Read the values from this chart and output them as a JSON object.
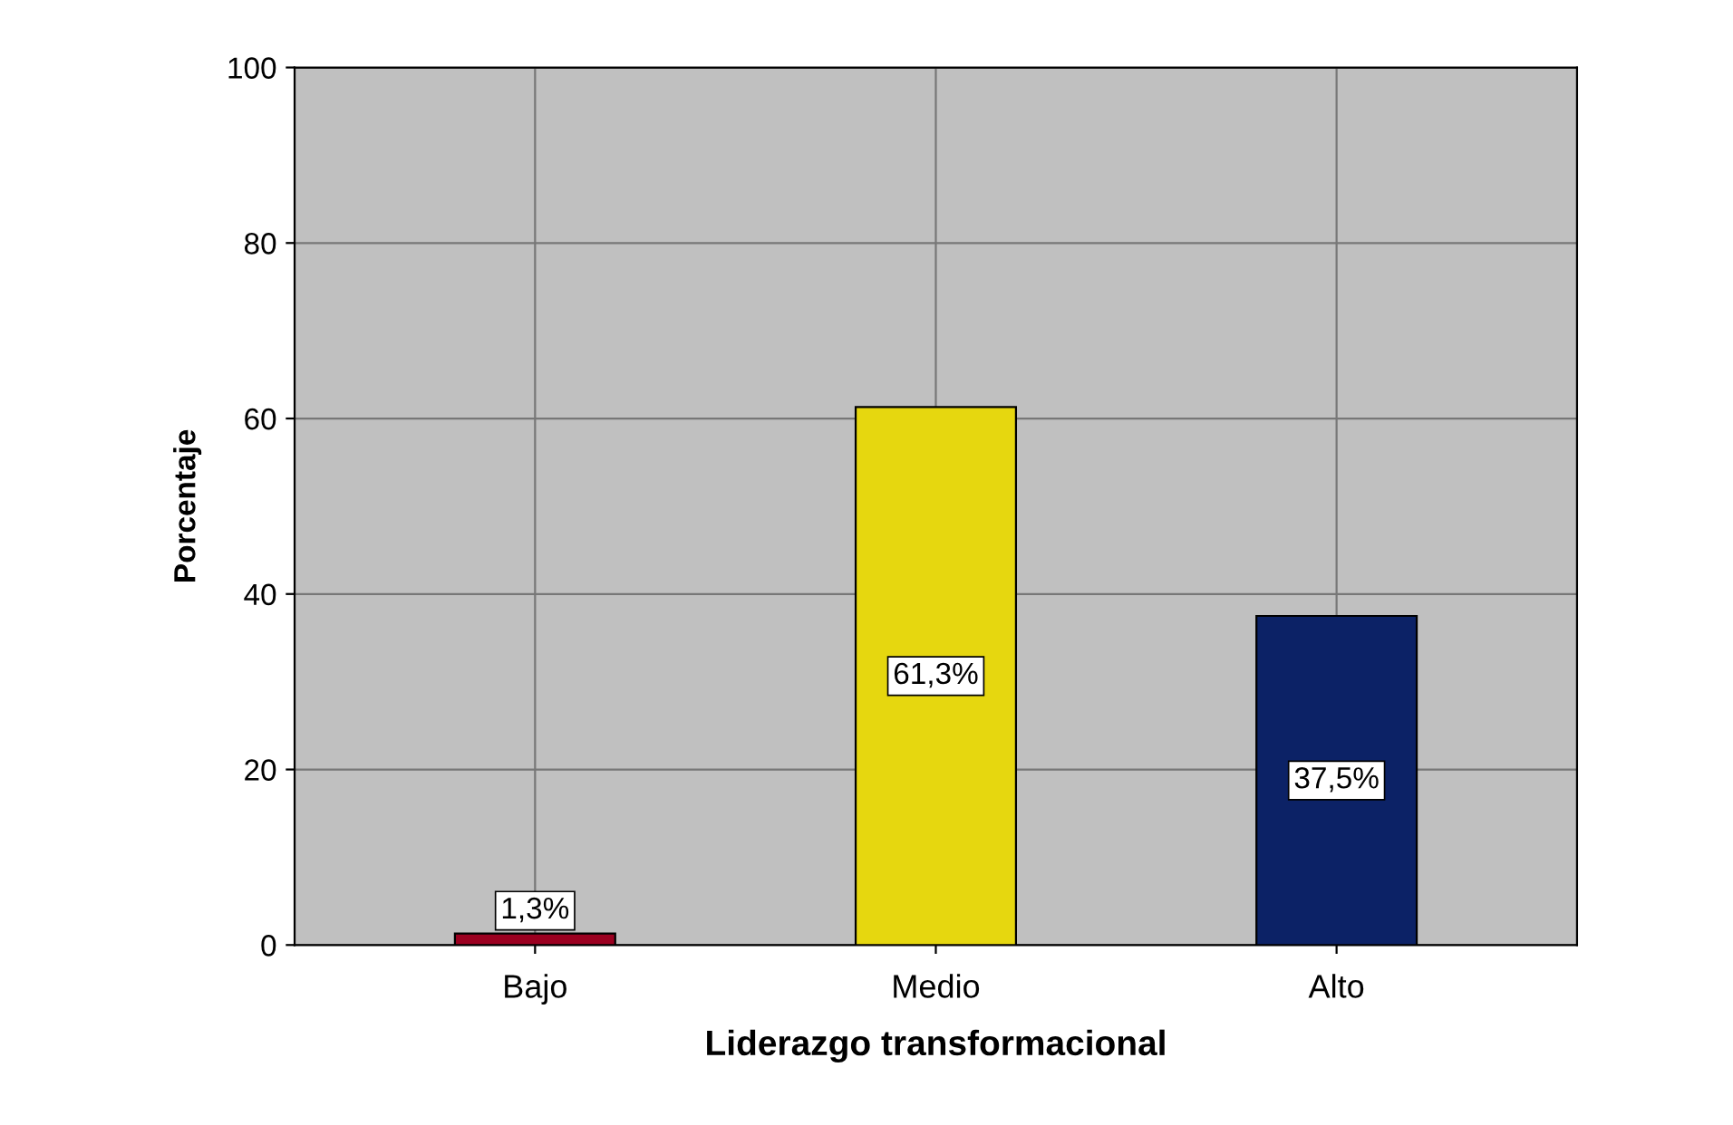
{
  "chart_data": {
    "type": "bar",
    "xlabel": "Liderazgo transformacional",
    "ylabel": "Porcentaje",
    "categories": [
      "Bajo",
      "Medio",
      "Alto"
    ],
    "values": [
      1.3,
      61.3,
      37.5
    ],
    "colors": [
      "#9b0020",
      "#e6d70f",
      "#0c2266"
    ],
    "value_labels": [
      "1,3%",
      "61,3%",
      "37,5%"
    ],
    "ylim": [
      0,
      100
    ],
    "yticks": [
      0,
      20,
      40,
      60,
      80,
      100
    ],
    "grid": true
  }
}
